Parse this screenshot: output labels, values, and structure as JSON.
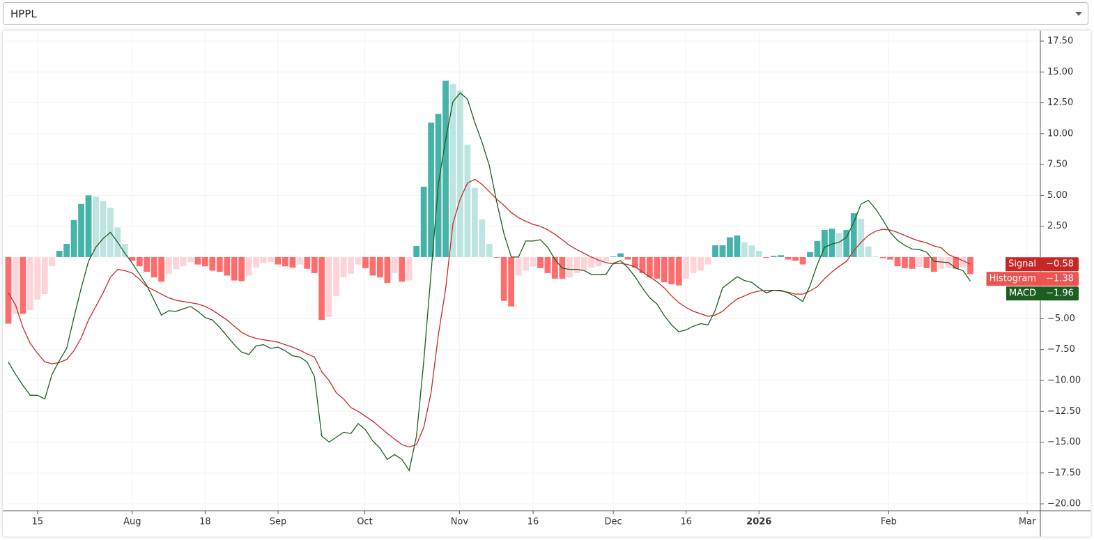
{
  "dropdown": {
    "value": "HPPL"
  },
  "chart_data": {
    "type": "combo",
    "xlim": [
      -0.38,
      141.6
    ],
    "xticks": [
      {
        "value": 4.0,
        "label": "15"
      },
      {
        "value": 17.0,
        "label": "Aug"
      },
      {
        "value": 27.0,
        "label": "18"
      },
      {
        "value": 37.0,
        "label": "Sep"
      },
      {
        "value": 48.9,
        "label": "Oct"
      },
      {
        "value": 61.9,
        "label": "Nov"
      },
      {
        "value": 72.0,
        "label": "16"
      },
      {
        "value": 83.0,
        "label": "Dec"
      },
      {
        "value": 93.0,
        "label": "16"
      },
      {
        "value": 103.0,
        "label": "2026"
      },
      {
        "value": 120.8,
        "label": "Feb"
      },
      {
        "value": 139.8,
        "label": "Mar"
      }
    ],
    "ylim": [
      -20.56,
      18.18
    ],
    "yticks": [
      {
        "value": 17.5,
        "label": "17.50"
      },
      {
        "value": 15,
        "label": "15.00"
      },
      {
        "value": 12.5,
        "label": "12.50"
      },
      {
        "value": 10,
        "label": "10.00"
      },
      {
        "value": 7.5,
        "label": "7.50"
      },
      {
        "value": 5,
        "label": "5.00"
      },
      {
        "value": 2.5,
        "label": "2.50"
      },
      {
        "value": -5,
        "label": "−5.00"
      },
      {
        "value": -7.5,
        "label": "−7.50"
      },
      {
        "value": -10,
        "label": "−10.00"
      },
      {
        "value": -12.5,
        "label": "−12.50"
      },
      {
        "value": -15,
        "label": "−15.00"
      },
      {
        "value": -17.5,
        "label": "−17.50"
      },
      {
        "value": -20,
        "label": "−20.00"
      }
    ],
    "grid": true,
    "series": [
      {
        "name": "Signal",
        "type": "line",
        "color": "#c62828",
        "last_value_label": "−0.58",
        "values": [
          -2.9,
          -3.9,
          -5.7,
          -7.0,
          -7.8,
          -8.5,
          -8.65,
          -8.55,
          -8.3,
          -7.6,
          -6.55,
          -5.1,
          -4.0,
          -2.9,
          -1.65,
          -1.0,
          -1.1,
          -1.3,
          -1.8,
          -2.4,
          -2.7,
          -3.0,
          -3.3,
          -3.5,
          -3.6,
          -3.7,
          -3.8,
          -4.0,
          -4.3,
          -4.7,
          -5.1,
          -5.6,
          -6.1,
          -6.4,
          -6.6,
          -6.7,
          -6.8,
          -6.9,
          -7.1,
          -7.3,
          -7.55,
          -7.85,
          -8.1,
          -9.3,
          -10.0,
          -11.0,
          -11.5,
          -12.2,
          -12.5,
          -12.9,
          -13.3,
          -13.8,
          -14.3,
          -14.75,
          -15.2,
          -15.4,
          -15.2,
          -13.8,
          -11.0,
          -6.3,
          -2.6,
          2.7,
          4.7,
          6.0,
          6.3,
          5.9,
          5.3,
          4.7,
          4.2,
          3.6,
          3.2,
          2.9,
          2.65,
          2.5,
          2.2,
          1.85,
          1.4,
          0.95,
          0.6,
          0.3,
          0.0,
          -0.25,
          -0.45,
          -0.55,
          -0.5,
          -0.6,
          -0.8,
          -1.2,
          -1.6,
          -2.0,
          -2.5,
          -3.15,
          -3.7,
          -4.1,
          -4.4,
          -4.6,
          -4.8,
          -4.7,
          -4.4,
          -3.85,
          -3.4,
          -3.15,
          -2.9,
          -2.75,
          -2.7,
          -2.7,
          -2.75,
          -2.85,
          -3.0,
          -3.0,
          -2.75,
          -2.4,
          -1.75,
          -1.2,
          -0.75,
          -0.35,
          0.5,
          1.2,
          1.75,
          2.1,
          2.25,
          2.2,
          2.0,
          1.75,
          1.5,
          1.3,
          1.15,
          0.9,
          0.75,
          0.2,
          -0.05,
          -0.3,
          -0.58
        ]
      },
      {
        "name": "Histogram",
        "type": "bar",
        "color": "#ef5350",
        "palette": [
          "#26a69a",
          "#b2dfdb",
          "#ffcdd2",
          "#ff5252"
        ],
        "last_value_label": "−1.38",
        "values": [
          -5.4,
          -4.6,
          -4.6,
          -4.3,
          -3.45,
          -3.0,
          -0.75,
          0.5,
          1.07,
          3.0,
          4.3,
          5.0,
          4.9,
          4.55,
          4.0,
          2.4,
          1.07,
          -0.3,
          -0.75,
          -1.2,
          -1.65,
          -2.0,
          -1.35,
          -1.0,
          -0.75,
          -0.4,
          -0.6,
          -0.75,
          -1.1,
          -1.2,
          -1.5,
          -1.9,
          -1.95,
          -1.5,
          -0.85,
          -0.5,
          -0.4,
          -0.6,
          -0.75,
          -0.85,
          -0.6,
          -0.95,
          -1.3,
          -5.1,
          -4.85,
          -3.15,
          -1.65,
          -1.35,
          -0.6,
          -0.9,
          -1.5,
          -1.65,
          -2.1,
          -1.3,
          -2.0,
          -1.9,
          0.9,
          5.7,
          10.9,
          11.6,
          14.3,
          14.0,
          13.5,
          9.1,
          5.6,
          3.05,
          1.07,
          -0.06,
          -3.55,
          -4.0,
          -1.5,
          -1.1,
          -0.75,
          -0.9,
          -1.3,
          -1.75,
          -1.75,
          -1.65,
          -1.3,
          -1.1,
          -0.85,
          -0.75,
          -0.3,
          0.05,
          0.3,
          -0.2,
          -0.85,
          -1.3,
          -1.65,
          -1.75,
          -2.05,
          -2.2,
          -2.3,
          -1.75,
          -1.3,
          -1.1,
          -0.6,
          0.95,
          0.95,
          1.6,
          1.75,
          1.2,
          0.95,
          0.5,
          -0.06,
          0.1,
          0.15,
          -0.2,
          -0.3,
          -0.6,
          0.4,
          1.3,
          2.2,
          2.3,
          1.95,
          2.2,
          3.55,
          3.1,
          0.85,
          0.05,
          -0.1,
          -0.2,
          -0.75,
          -0.9,
          -0.95,
          -0.8,
          -0.9,
          -1.2,
          -0.95,
          -0.9,
          -0.95,
          -0.85,
          -1.38
        ]
      },
      {
        "name": "MACD",
        "type": "line",
        "color": "#1b5e20",
        "last_value_label": "−1.96",
        "values": [
          -8.53,
          -9.5,
          -10.4,
          -11.2,
          -11.2,
          -11.5,
          -9.5,
          -8.4,
          -7.4,
          -4.9,
          -2.5,
          -0.35,
          0.8,
          1.5,
          2.0,
          1.2,
          0.3,
          -0.5,
          -1.4,
          -2.3,
          -3.5,
          -4.7,
          -4.35,
          -4.4,
          -4.2,
          -4.0,
          -4.4,
          -4.9,
          -5.1,
          -5.7,
          -6.4,
          -7.1,
          -7.7,
          -7.9,
          -7.2,
          -7.1,
          -7.4,
          -7.3,
          -7.6,
          -8.0,
          -8.1,
          -8.5,
          -9.7,
          -14.5,
          -15.0,
          -14.6,
          -14.2,
          -14.3,
          -13.5,
          -14.0,
          -14.9,
          -15.5,
          -16.4,
          -16.0,
          -16.4,
          -17.3,
          -14.5,
          -8.4,
          -1.3,
          5.9,
          9.5,
          12.6,
          13.3,
          12.8,
          10.9,
          9.3,
          7.4,
          4.5,
          1.9,
          0.0,
          0.0,
          1.3,
          1.3,
          1.4,
          0.8,
          -0.2,
          -0.9,
          -1.0,
          -1.0,
          -1.1,
          -1.4,
          -1.4,
          -1.4,
          -0.5,
          -0.3,
          -0.85,
          -1.6,
          -2.5,
          -3.3,
          -3.8,
          -4.75,
          -5.5,
          -6.05,
          -5.9,
          -5.6,
          -5.4,
          -5.5,
          -4.3,
          -2.5,
          -2.05,
          -1.6,
          -1.9,
          -2.05,
          -2.5,
          -2.9,
          -2.7,
          -2.7,
          -2.9,
          -3.2,
          -3.6,
          -2.3,
          -0.6,
          0.8,
          1.05,
          1.2,
          1.6,
          2.8,
          4.3,
          4.6,
          3.9,
          3.0,
          2.0,
          1.35,
          0.95,
          0.65,
          0.6,
          0.4,
          -0.35,
          -0.4,
          -0.45,
          -0.9,
          -1.1,
          -1.96
        ]
      }
    ]
  }
}
